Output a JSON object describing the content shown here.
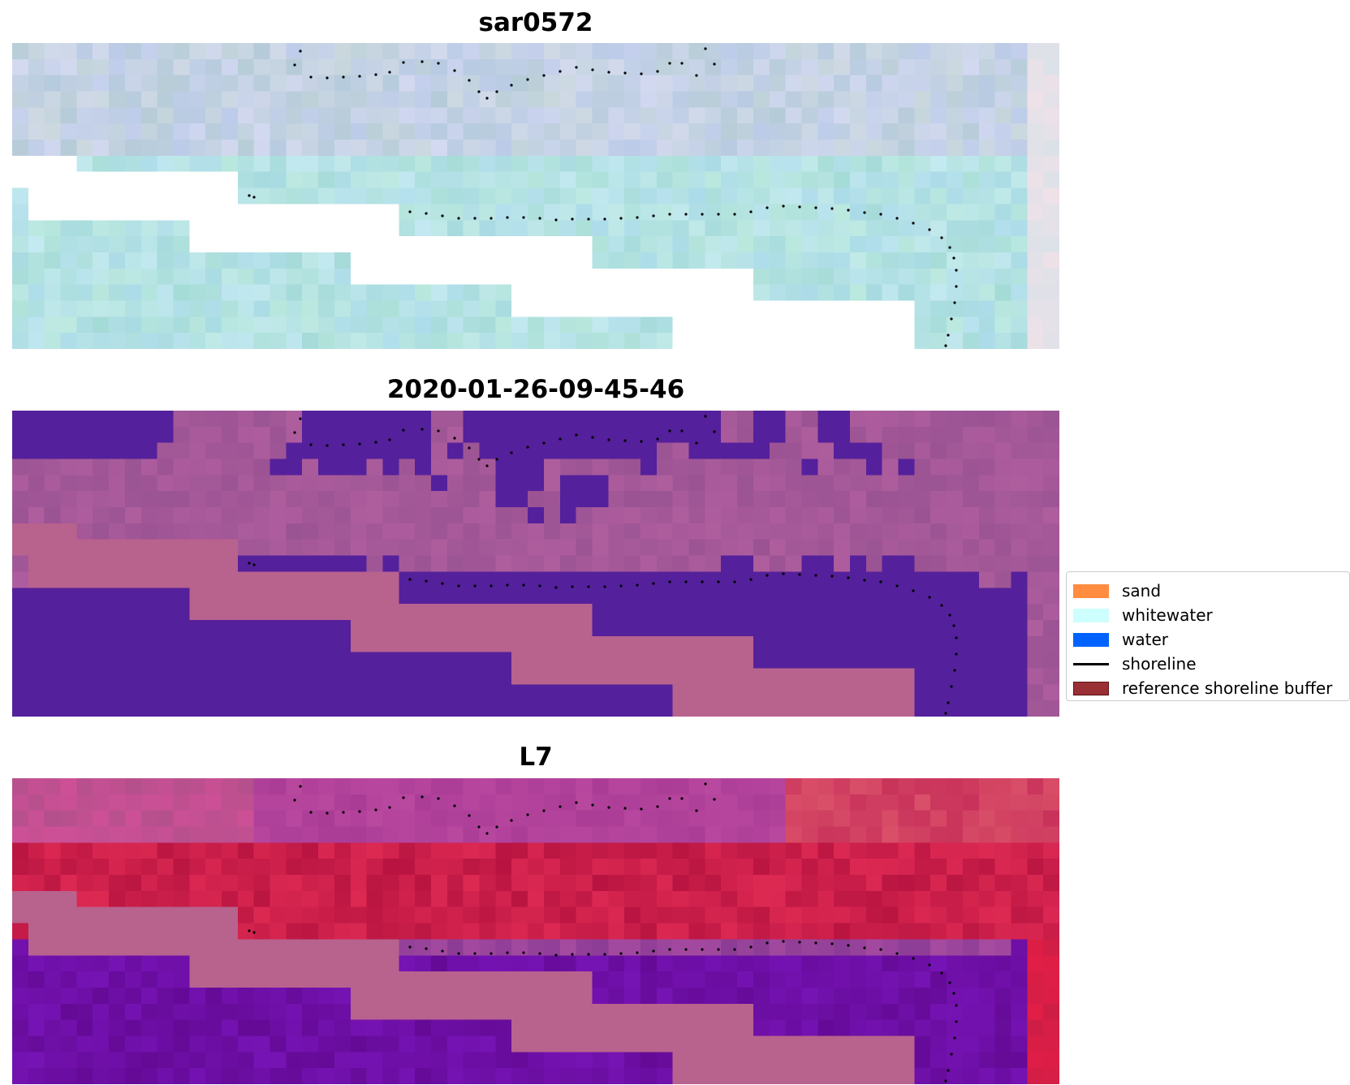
{
  "panels": [
    {
      "title": "sar0572",
      "style": "sar"
    },
    {
      "title": "2020-01-26-09-45-46",
      "style": "classified"
    },
    {
      "title": "L7",
      "style": "l7"
    }
  ],
  "legend": {
    "items": [
      {
        "label": "sand",
        "color": "#ff8c3f",
        "kind": "patch"
      },
      {
        "label": "whitewater",
        "color": "#ccfffd",
        "kind": "patch"
      },
      {
        "label": "water",
        "color": "#0063ff",
        "kind": "patch"
      },
      {
        "label": "shoreline",
        "color": "#000000",
        "kind": "line"
      },
      {
        "label": "reference shoreline buffer",
        "color": "#9a3035",
        "kind": "patch",
        "edge": "#5e1418"
      }
    ]
  },
  "colors": {
    "classified_water": "#55209b",
    "classified_land": "#b8628e",
    "nodata_sar": "#ffffff",
    "nodata_other": "#b8628e",
    "shoreline_points": "#000000"
  }
}
